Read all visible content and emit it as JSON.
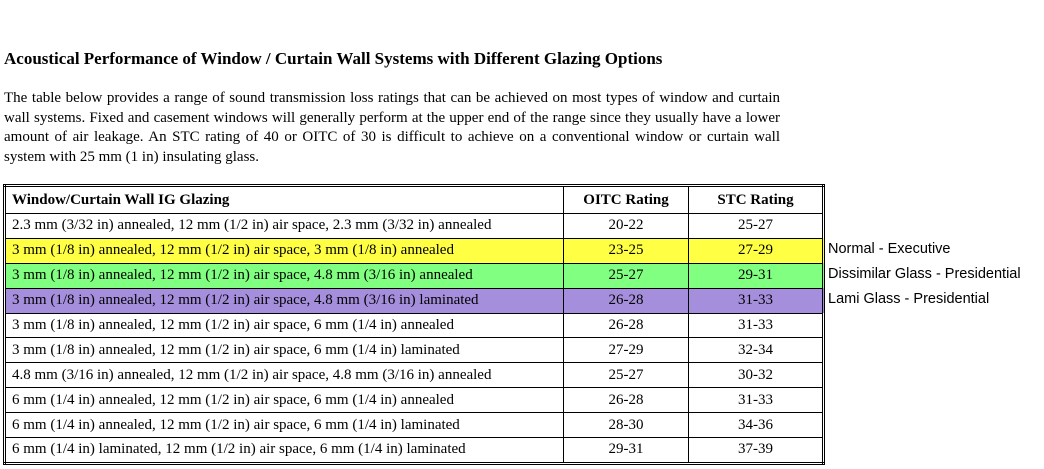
{
  "title": "Acoustical Performance of Window / Curtain Wall Systems with Different Glazing Options",
  "intro": "The table below provides a range of sound transmission loss ratings that can be achieved on most types of window and curtain wall systems. Fixed and casement windows will generally perform at the upper end of the range since they usually have a lower amount of air leakage. An STC rating of 40 or OITC of 30 is difficult to achieve on a conventional window or curtain wall system with 25 mm (1 in) insulating glass.",
  "table": {
    "columns": [
      "Window/Curtain Wall IG Glazing",
      "OITC Rating",
      "STC Rating"
    ],
    "rows": [
      {
        "cells": [
          "2.3 mm (3/32 in) annealed, 12 mm (1/2 in) air space, 2.3 mm (3/32 in) annealed",
          "20-22",
          "25-27"
        ]
      },
      {
        "cells": [
          "3 mm (1/8 in) annealed, 12 mm (1/2 in) air space, 3 mm (1/8 in) annealed",
          "23-25",
          "27-29"
        ],
        "color": "#ffff44",
        "note": "Normal - Executive"
      },
      {
        "cells": [
          "3 mm (1/8 in) annealed, 12 mm (1/2 in) air space, 4.8 mm (3/16 in) annealed",
          "25-27",
          "29-31"
        ],
        "color": "#80ff80",
        "note": "Dissimilar Glass - Presidential"
      },
      {
        "cells": [
          "3 mm (1/8 in) annealed, 12 mm (1/2 in) air space, 4.8 mm (3/16 in) laminated",
          "26-28",
          "31-33"
        ],
        "color": "#a58fdd",
        "note": "Lami Glass - Presidential"
      },
      {
        "cells": [
          "3 mm (1/8 in) annealed, 12 mm (1/2 in) air space, 6 mm (1/4 in) annealed",
          "26-28",
          "31-33"
        ]
      },
      {
        "cells": [
          "3 mm (1/8 in) annealed, 12 mm (1/2 in) air space, 6 mm (1/4 in) laminated",
          "27-29",
          "32-34"
        ]
      },
      {
        "cells": [
          "4.8 mm (3/16 in) annealed, 12 mm (1/2 in) air space, 4.8 mm (3/16 in) annealed",
          "25-27",
          "30-32"
        ]
      },
      {
        "cells": [
          "6 mm (1/4 in) annealed, 12 mm (1/2 in) air space, 6 mm (1/4 in) annealed",
          "26-28",
          "31-33"
        ]
      },
      {
        "cells": [
          "6 mm (1/4 in) annealed, 12 mm (1/2 in) air space, 6 mm (1/4 in) laminated",
          "28-30",
          "34-36"
        ]
      },
      {
        "cells": [
          "6 mm (1/4 in) laminated, 12 mm (1/2 in) air space, 6 mm (1/4 in) laminated",
          "29-31",
          "37-39"
        ]
      }
    ]
  }
}
